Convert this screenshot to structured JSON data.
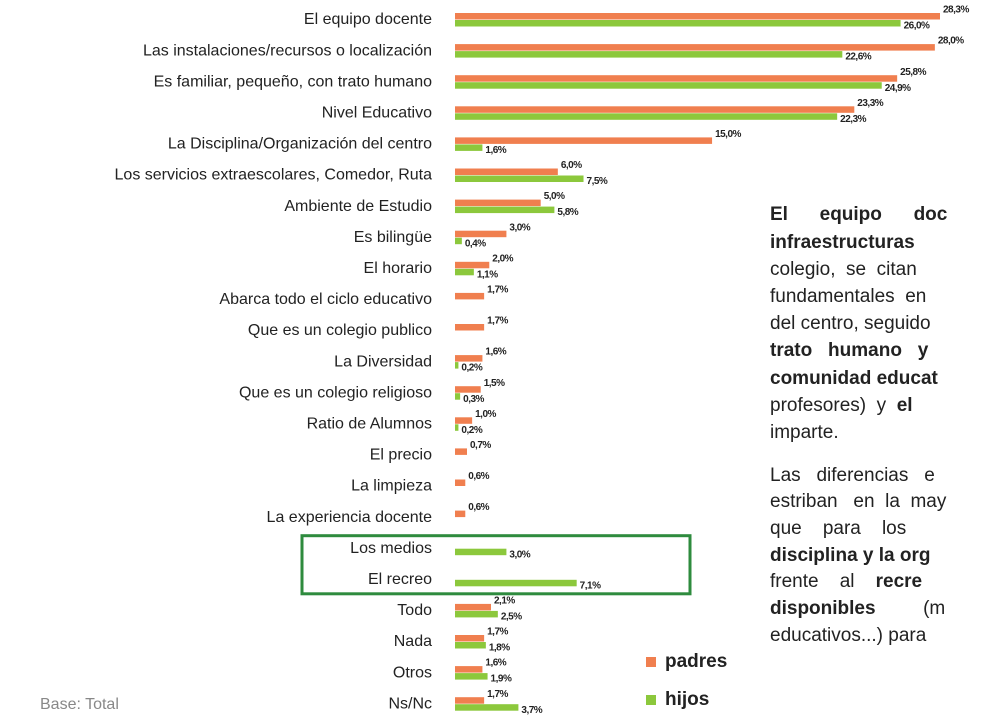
{
  "chart_data": {
    "type": "bar",
    "orientation": "horizontal",
    "categories": [
      "El equipo docente",
      "Las instalaciones/recursos o localización",
      "Es familiar, pequeño, con trato humano",
      "Nivel Educativo",
      "La Disciplina/Organización del centro",
      "Los servicios extraescolares, Comedor, Ruta",
      "Ambiente de Estudio",
      "Es bilingüe",
      "El horario",
      "Abarca todo el ciclo educativo",
      "Que es un colegio publico",
      "La Diversidad",
      "Que es un colegio religioso",
      "Ratio de Alumnos",
      "El precio",
      "La limpieza",
      "La experiencia docente",
      "Los medios",
      "El recreo",
      "Todo",
      "Nada",
      "Otros",
      "Ns/Nc"
    ],
    "series": [
      {
        "name": "padres",
        "color": "#f07f4f",
        "values": [
          28.3,
          28.0,
          25.8,
          23.3,
          15.0,
          6.0,
          5.0,
          3.0,
          2.0,
          1.7,
          1.7,
          1.6,
          1.5,
          1.0,
          0.7,
          0.6,
          0.6,
          null,
          null,
          2.1,
          1.7,
          1.6,
          1.7
        ],
        "value_labels": [
          "28,3%",
          "28,0%",
          "25,8%",
          "23,3%",
          "15,0%",
          "6,0%",
          "5,0%",
          "3,0%",
          "2,0%",
          "1,7%",
          "1,7%",
          "1,6%",
          "1,5%",
          "1,0%",
          "0,7%",
          "0,6%",
          "0,6%",
          null,
          null,
          "2,1%",
          "1,7%",
          "1,6%",
          "1,7%"
        ]
      },
      {
        "name": "hijos",
        "color": "#8cc83c",
        "values": [
          26.0,
          22.6,
          24.9,
          22.3,
          1.6,
          7.5,
          5.8,
          0.4,
          1.1,
          null,
          null,
          0.2,
          0.3,
          0.2,
          null,
          null,
          null,
          3.0,
          7.1,
          2.5,
          1.8,
          1.9,
          3.7
        ],
        "value_labels": [
          "26,0%",
          "22,6%",
          "24,9%",
          "22,3%",
          "1,6%",
          "7,5%",
          "5,8%",
          "0,4%",
          "1,1%",
          null,
          null,
          "0,2%",
          "0,3%",
          "0,2%",
          null,
          null,
          null,
          "3,0%",
          "7,1%",
          "2,5%",
          "1,8%",
          "1,9%",
          "3,7%"
        ]
      }
    ],
    "xlim": [
      0,
      28.3
    ],
    "note": "Base: Total",
    "highlight": [
      17,
      18
    ],
    "highlight_color": "#2e8b3e"
  },
  "text_box": {
    "lines": [
      [
        {
          "text": "El      equipo      doc",
          "bold": true
        }
      ],
      [
        {
          "text": "infraestructuras",
          "bold": true
        }
      ],
      [
        {
          "text": "colegio,  se  citan",
          "bold": false
        }
      ],
      [
        {
          "text": "fundamentales  en",
          "bold": false
        }
      ],
      [
        {
          "text": "del centro, seguido",
          "bold": false
        }
      ],
      [
        {
          "text": "trato   humano   y",
          "bold": true
        }
      ],
      [
        {
          "text": "comunidad educat",
          "bold": true
        }
      ],
      [
        {
          "text": "profesores)  y  ",
          "bold": false
        },
        {
          "text": "el",
          "bold": true
        }
      ],
      [
        {
          "text": "imparte.",
          "bold": false
        }
      ],
      [
        {
          "text": "Las   diferencias   e",
          "bold": false
        }
      ],
      [
        {
          "text": "estriban   en  la  may",
          "bold": false
        }
      ],
      [
        {
          "text": "que    para    los",
          "bold": false
        }
      ],
      [
        {
          "text": "disciplina y la org",
          "bold": true
        }
      ],
      [
        {
          "text": "frente    al    ",
          "bold": false
        },
        {
          "text": "recre",
          "bold": true
        }
      ],
      [
        {
          "text": "disponibles",
          "bold": true
        },
        {
          "text": "         (m",
          "bold": false
        }
      ],
      [
        {
          "text": "educativos...) para",
          "bold": false
        }
      ]
    ]
  }
}
